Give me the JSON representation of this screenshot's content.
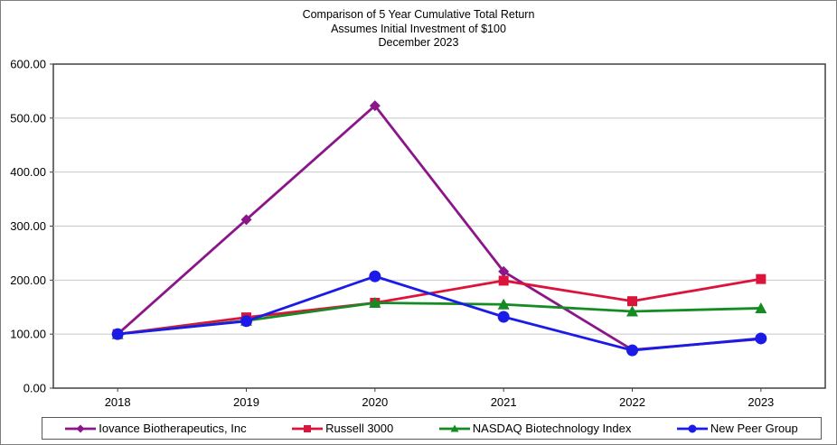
{
  "title_lines": [
    "Comparison of 5 Year Cumulative Total Return",
    "Assumes Initial Investment of $100",
    "December 2023"
  ],
  "chart_data": {
    "type": "line",
    "title": "Comparison of 5 Year Cumulative Total Return",
    "subtitle": "Assumes Initial Investment of $100",
    "date_label": "December 2023",
    "categories": [
      "2018",
      "2019",
      "2020",
      "2021",
      "2022",
      "2023"
    ],
    "series": [
      {
        "name": "Iovance Biotherapeutics, Inc",
        "color": "#8A168A",
        "marker": "diamond",
        "values": [
          100,
          312,
          523,
          216,
          71,
          91
        ]
      },
      {
        "name": "Russell 3000",
        "color": "#DC143C",
        "marker": "square",
        "values": [
          100,
          131,
          158,
          199,
          161,
          202
        ]
      },
      {
        "name": "NASDAQ Biotechnology Index",
        "color": "#148C23",
        "marker": "triangle",
        "values": [
          100,
          125,
          158,
          155,
          142,
          148
        ]
      },
      {
        "name": "New Peer Group",
        "color": "#1B1BE8",
        "marker": "circle",
        "values": [
          100,
          124,
          207,
          132,
          70,
          92
        ]
      }
    ],
    "ylim": [
      0,
      600
    ],
    "y_tick_step": 100,
    "y_tick_labels": [
      "0.00",
      "100.00",
      "200.00",
      "300.00",
      "400.00",
      "500.00",
      "600.00"
    ],
    "grid": true,
    "legend_position": "bottom"
  },
  "colors": {
    "grid": "#C8C8C8",
    "axis": "#404040",
    "outer_border": "#7F7F7F",
    "background": "#FFFFFF"
  }
}
